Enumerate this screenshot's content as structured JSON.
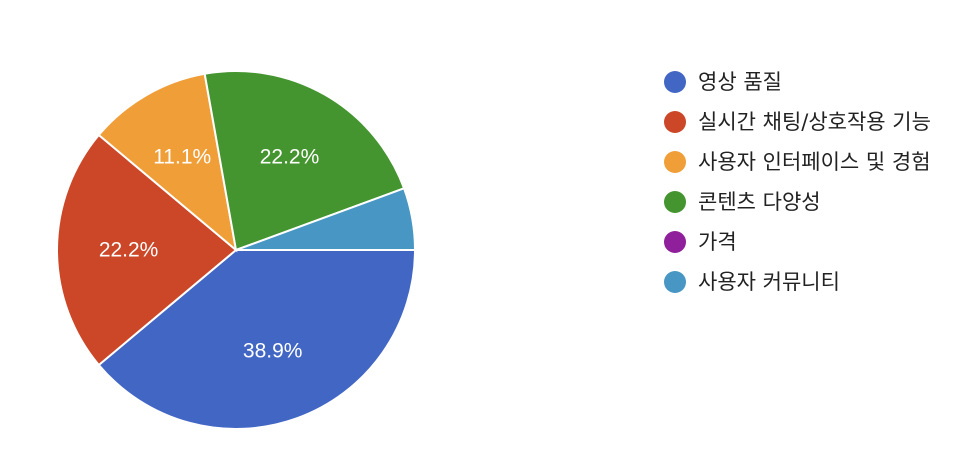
{
  "chart_data": {
    "type": "pie",
    "slices": [
      {
        "label": "영상 품질",
        "value": 38.9,
        "percent_label": "38.9%",
        "color": "#4266c4"
      },
      {
        "label": "실시간 채팅/상호작용 기능",
        "value": 22.2,
        "percent_label": "22.2%",
        "color": "#cc4628"
      },
      {
        "label": "사용자 인터페이스 및 경험",
        "value": 11.1,
        "percent_label": "11.1%",
        "color": "#f09e38"
      },
      {
        "label": "콘텐츠 다양성",
        "value": 22.2,
        "percent_label": "22.2%",
        "color": "#44942f"
      },
      {
        "label": "가격",
        "value": 0,
        "percent_label": "",
        "color": "#8f1f9a"
      },
      {
        "label": "사용자 커뮤니티",
        "value": 5.6,
        "percent_label": "",
        "color": "#4796c4"
      }
    ],
    "legend_position": "right"
  }
}
